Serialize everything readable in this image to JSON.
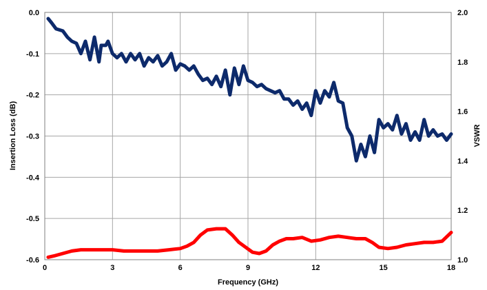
{
  "chart_data": {
    "type": "line",
    "xlabel": "Frequency (GHz)",
    "ylabel": "Insertion Loss (dB)",
    "y2label": "VSWR",
    "xlim": [
      0,
      18
    ],
    "ylim": [
      -0.6,
      0.0
    ],
    "y2lim": [
      1.0,
      2.0
    ],
    "x_ticks": [
      "0",
      "3",
      "6",
      "9",
      "12",
      "15",
      "18"
    ],
    "y_ticks": [
      "0.0",
      "-0.1",
      "-0.2",
      "-0.3",
      "-0.4",
      "-0.5",
      "-0.6"
    ],
    "y2_ticks": [
      "2.0",
      "1.8",
      "1.6",
      "1.4",
      "1.2",
      "1.0"
    ],
    "x_tick_values": [
      0,
      3,
      6,
      9,
      12,
      15,
      18
    ],
    "y_tick_values": [
      0.0,
      -0.1,
      -0.2,
      -0.3,
      -0.4,
      -0.5,
      -0.6
    ],
    "y2_tick_values": [
      2.0,
      1.8,
      1.6,
      1.4,
      1.2,
      1.0
    ],
    "grid": true,
    "legend": "none",
    "series": [
      {
        "axis": "left",
        "color": "#0d2a6b",
        "x": [
          0.15,
          0.3,
          0.5,
          0.8,
          1.0,
          1.2,
          1.4,
          1.6,
          1.8,
          2.0,
          2.2,
          2.4,
          2.5,
          2.7,
          2.8,
          3.0,
          3.2,
          3.4,
          3.6,
          3.8,
          4.0,
          4.2,
          4.4,
          4.6,
          4.8,
          5.0,
          5.2,
          5.4,
          5.6,
          5.8,
          6.0,
          6.2,
          6.4,
          6.6,
          6.8,
          7.0,
          7.2,
          7.4,
          7.6,
          7.8,
          8.0,
          8.2,
          8.4,
          8.6,
          8.8,
          9.0,
          9.2,
          9.4,
          9.6,
          9.8,
          10.0,
          10.2,
          10.4,
          10.6,
          10.8,
          11.0,
          11.2,
          11.4,
          11.6,
          11.8,
          12.0,
          12.2,
          12.4,
          12.6,
          12.8,
          13.0,
          13.2,
          13.4,
          13.6,
          13.8,
          14.0,
          14.2,
          14.4,
          14.6,
          14.8,
          15.0,
          15.2,
          15.4,
          15.6,
          15.8,
          16.0,
          16.2,
          16.4,
          16.6,
          16.8,
          17.0,
          17.2,
          17.4,
          17.6,
          17.8,
          18.0
        ],
        "y": [
          -0.015,
          -0.025,
          -0.04,
          -0.045,
          -0.06,
          -0.07,
          -0.075,
          -0.1,
          -0.07,
          -0.115,
          -0.06,
          -0.12,
          -0.08,
          -0.08,
          -0.07,
          -0.1,
          -0.11,
          -0.1,
          -0.12,
          -0.1,
          -0.115,
          -0.1,
          -0.13,
          -0.11,
          -0.12,
          -0.105,
          -0.13,
          -0.12,
          -0.1,
          -0.14,
          -0.125,
          -0.13,
          -0.14,
          -0.13,
          -0.15,
          -0.165,
          -0.16,
          -0.175,
          -0.155,
          -0.18,
          -0.14,
          -0.2,
          -0.135,
          -0.175,
          -0.13,
          -0.165,
          -0.17,
          -0.18,
          -0.175,
          -0.185,
          -0.19,
          -0.195,
          -0.19,
          -0.21,
          -0.21,
          -0.225,
          -0.215,
          -0.235,
          -0.22,
          -0.25,
          -0.19,
          -0.22,
          -0.19,
          -0.205,
          -0.17,
          -0.215,
          -0.22,
          -0.28,
          -0.3,
          -0.36,
          -0.32,
          -0.35,
          -0.3,
          -0.34,
          -0.26,
          -0.28,
          -0.27,
          -0.285,
          -0.25,
          -0.295,
          -0.27,
          -0.31,
          -0.29,
          -0.31,
          -0.26,
          -0.3,
          -0.285,
          -0.3,
          -0.295,
          -0.31,
          -0.295
        ],
        "name": ""
      },
      {
        "axis": "right",
        "color": "#ff0000",
        "x": [
          0.15,
          0.4,
          0.8,
          1.2,
          1.6,
          2.0,
          2.5,
          3.0,
          3.5,
          4.0,
          4.5,
          5.0,
          5.5,
          6.0,
          6.3,
          6.6,
          6.9,
          7.2,
          7.6,
          8.0,
          8.3,
          8.6,
          8.9,
          9.2,
          9.5,
          9.8,
          10.1,
          10.4,
          10.7,
          11.0,
          11.4,
          11.8,
          12.2,
          12.6,
          13.0,
          13.4,
          13.8,
          14.2,
          14.5,
          14.8,
          15.2,
          15.6,
          16.0,
          16.4,
          16.8,
          17.2,
          17.6,
          18.0
        ],
        "y": [
          1.01,
          1.015,
          1.025,
          1.035,
          1.04,
          1.04,
          1.04,
          1.04,
          1.035,
          1.035,
          1.035,
          1.035,
          1.04,
          1.045,
          1.055,
          1.07,
          1.1,
          1.12,
          1.125,
          1.125,
          1.1,
          1.07,
          1.05,
          1.03,
          1.025,
          1.035,
          1.06,
          1.075,
          1.085,
          1.085,
          1.09,
          1.075,
          1.08,
          1.09,
          1.095,
          1.09,
          1.085,
          1.085,
          1.07,
          1.05,
          1.045,
          1.05,
          1.06,
          1.065,
          1.07,
          1.07,
          1.075,
          1.11
        ],
        "name": ""
      }
    ]
  }
}
